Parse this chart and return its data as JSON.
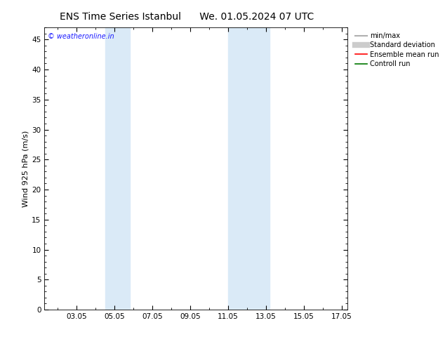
{
  "title_left": "ENS Time Series Istanbul",
  "title_right": "We. 01.05.2024 07 UTC",
  "ylabel": "Wind 925 hPa (m/s)",
  "ylim": [
    0,
    47
  ],
  "yticks": [
    0,
    5,
    10,
    15,
    20,
    25,
    30,
    35,
    40,
    45
  ],
  "xtick_positions": [
    3,
    5,
    7,
    9,
    11,
    13,
    15,
    17
  ],
  "xtick_labels": [
    "03.05",
    "05.05",
    "07.05",
    "09.05",
    "11.05",
    "13.05",
    "15.05",
    "17.05"
  ],
  "xlim": [
    1.292,
    17.292
  ],
  "shaded_bands": [
    {
      "x_start": 4.5,
      "x_end": 5.8
    },
    {
      "x_start": 11.0,
      "x_end": 13.2
    }
  ],
  "shaded_color": "#daeaf7",
  "background_color": "#ffffff",
  "watermark_text": "© weatheronline.in",
  "watermark_color": "#1a1aff",
  "legend_items": [
    {
      "label": "min/max",
      "color": "#b0b0b0",
      "lw": 1.5
    },
    {
      "label": "Standard deviation",
      "color": "#cccccc",
      "lw": 6
    },
    {
      "label": "Ensemble mean run",
      "color": "#ff0000",
      "lw": 1.2
    },
    {
      "label": "Controll run",
      "color": "#007700",
      "lw": 1.2
    }
  ],
  "title_fontsize": 10,
  "tick_label_fontsize": 7.5,
  "ylabel_fontsize": 8,
  "watermark_fontsize": 7,
  "legend_fontsize": 7
}
